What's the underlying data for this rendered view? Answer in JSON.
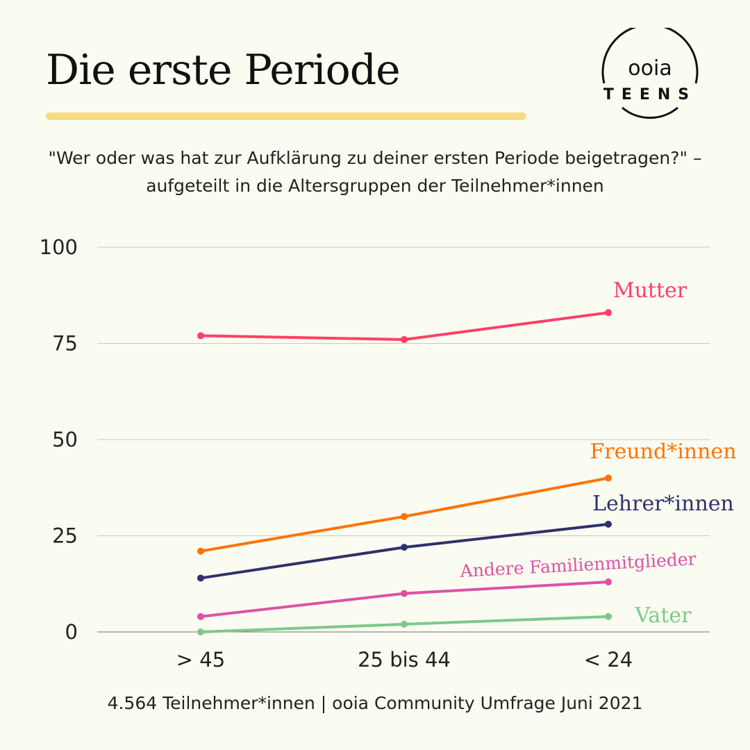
{
  "header": {
    "title": "Die erste Periode",
    "subtitle": "\"Wer oder was hat zur Aufklärung zu deiner ersten Periode beigetragen?\" – aufgeteilt in die Altersgruppen der Teilnehmer*innen"
  },
  "logo": {
    "line1": "ooia",
    "line2": "TEENS"
  },
  "footer": "4.564 Teilnehmer*innen | ooia Community Umfrage Juni 2021",
  "chart_data": {
    "type": "line",
    "title": "",
    "xlabel": "",
    "ylabel": "",
    "categories": [
      "> 45",
      "25 bis 44",
      "< 24"
    ],
    "ylim": [
      0,
      100
    ],
    "yticks": [
      0,
      25,
      50,
      75,
      100
    ],
    "grid": true,
    "series": [
      {
        "name": "Mutter",
        "color": "#ff3f67",
        "values": [
          77,
          76,
          83
        ]
      },
      {
        "name": "Freund*innen",
        "color": "#ff7306",
        "values": [
          21,
          30,
          40
        ]
      },
      {
        "name": "Lehrer*innen",
        "color": "#2e316b",
        "values": [
          14,
          22,
          28
        ]
      },
      {
        "name": "Andere Familienmitglieder",
        "color": "#dc52a6",
        "values": [
          4,
          10,
          13
        ]
      },
      {
        "name": "Vater",
        "color": "#7cc98a",
        "values": [
          0,
          2,
          4
        ]
      }
    ]
  }
}
